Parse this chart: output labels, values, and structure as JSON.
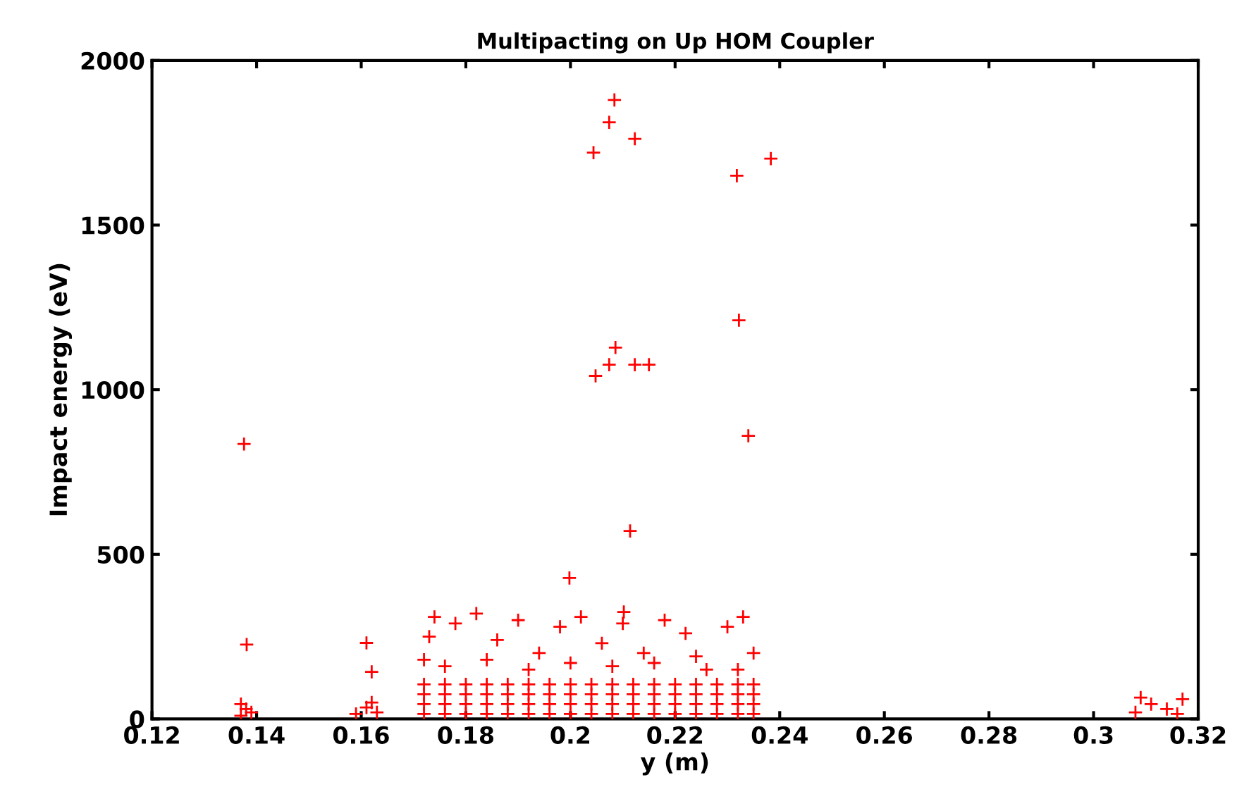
{
  "chart_data": {
    "type": "scatter",
    "title": "Multipacting on Up HOM Coupler",
    "xlabel": "y (m)",
    "ylabel": "Impact energy (eV)",
    "xlim": [
      0.12,
      0.32
    ],
    "xticks": [
      0.12,
      0.14,
      0.16,
      0.18,
      0.2,
      0.22,
      0.24,
      0.26,
      0.28,
      0.3,
      0.32
    ],
    "ylim": [
      0,
      2000
    ],
    "yticks": [
      0,
      500,
      1000,
      1500,
      2000
    ],
    "grid": false,
    "marker": "cross",
    "series": [
      {
        "color": "#ff0000",
        "x": [
          0.172,
          0.176,
          0.18,
          0.184,
          0.188,
          0.192,
          0.196,
          0.2,
          0.204,
          0.208,
          0.212,
          0.216,
          0.22,
          0.224,
          0.228,
          0.232,
          0.235,
          0.172,
          0.176,
          0.18,
          0.184,
          0.188,
          0.192,
          0.196,
          0.2,
          0.204,
          0.208,
          0.212,
          0.216,
          0.22,
          0.224,
          0.228,
          0.232,
          0.235,
          0.172,
          0.176,
          0.18,
          0.184,
          0.188,
          0.192,
          0.196,
          0.2,
          0.204,
          0.208,
          0.212,
          0.216,
          0.22,
          0.224,
          0.228,
          0.232,
          0.235,
          0.172,
          0.176,
          0.18,
          0.184,
          0.188,
          0.192,
          0.196,
          0.2,
          0.204,
          0.208,
          0.212,
          0.216,
          0.22,
          0.224,
          0.228,
          0.232,
          0.235,
          0.172,
          0.173,
          0.174,
          0.178,
          0.182,
          0.186,
          0.19,
          0.194,
          0.198,
          0.202,
          0.206,
          0.21,
          0.214,
          0.218,
          0.222,
          0.226,
          0.23,
          0.233,
          0.235,
          0.176,
          0.184,
          0.192,
          0.2,
          0.208,
          0.216,
          0.224,
          0.232,
          0.137,
          0.138,
          0.139,
          0.137,
          0.159,
          0.161,
          0.163,
          0.162,
          0.308,
          0.311,
          0.314,
          0.317,
          0.309,
          0.316,
          0.2084,
          0.2074,
          0.2123,
          0.2044,
          0.2318,
          0.2383,
          0.2322,
          0.2086,
          0.2074,
          0.2123,
          0.215,
          0.2048,
          0.234,
          0.2114,
          0.1376,
          0.1998,
          0.1381,
          0.161,
          0.162,
          0.2102
        ],
        "values": [
          15,
          15,
          15,
          15,
          15,
          15,
          15,
          15,
          15,
          15,
          15,
          15,
          15,
          15,
          15,
          15,
          15,
          45,
          45,
          45,
          45,
          45,
          45,
          45,
          45,
          45,
          45,
          45,
          45,
          45,
          45,
          45,
          45,
          45,
          75,
          75,
          75,
          75,
          75,
          75,
          75,
          75,
          75,
          75,
          75,
          75,
          75,
          75,
          75,
          75,
          75,
          105,
          105,
          105,
          105,
          105,
          105,
          105,
          105,
          105,
          105,
          105,
          105,
          105,
          105,
          105,
          105,
          105,
          180,
          250,
          310,
          290,
          320,
          240,
          300,
          200,
          280,
          310,
          230,
          290,
          200,
          300,
          260,
          150,
          280,
          310,
          200,
          160,
          180,
          150,
          170,
          160,
          170,
          190,
          150,
          10,
          30,
          20,
          45,
          15,
          35,
          20,
          50,
          20,
          45,
          30,
          60,
          65,
          15,
          1880,
          1812,
          1762,
          1720,
          1650,
          1702,
          1211,
          1128,
          1076,
          1076,
          1076,
          1042,
          860,
          571,
          835,
          428,
          226,
          231,
          143,
          325
        ]
      }
    ]
  }
}
